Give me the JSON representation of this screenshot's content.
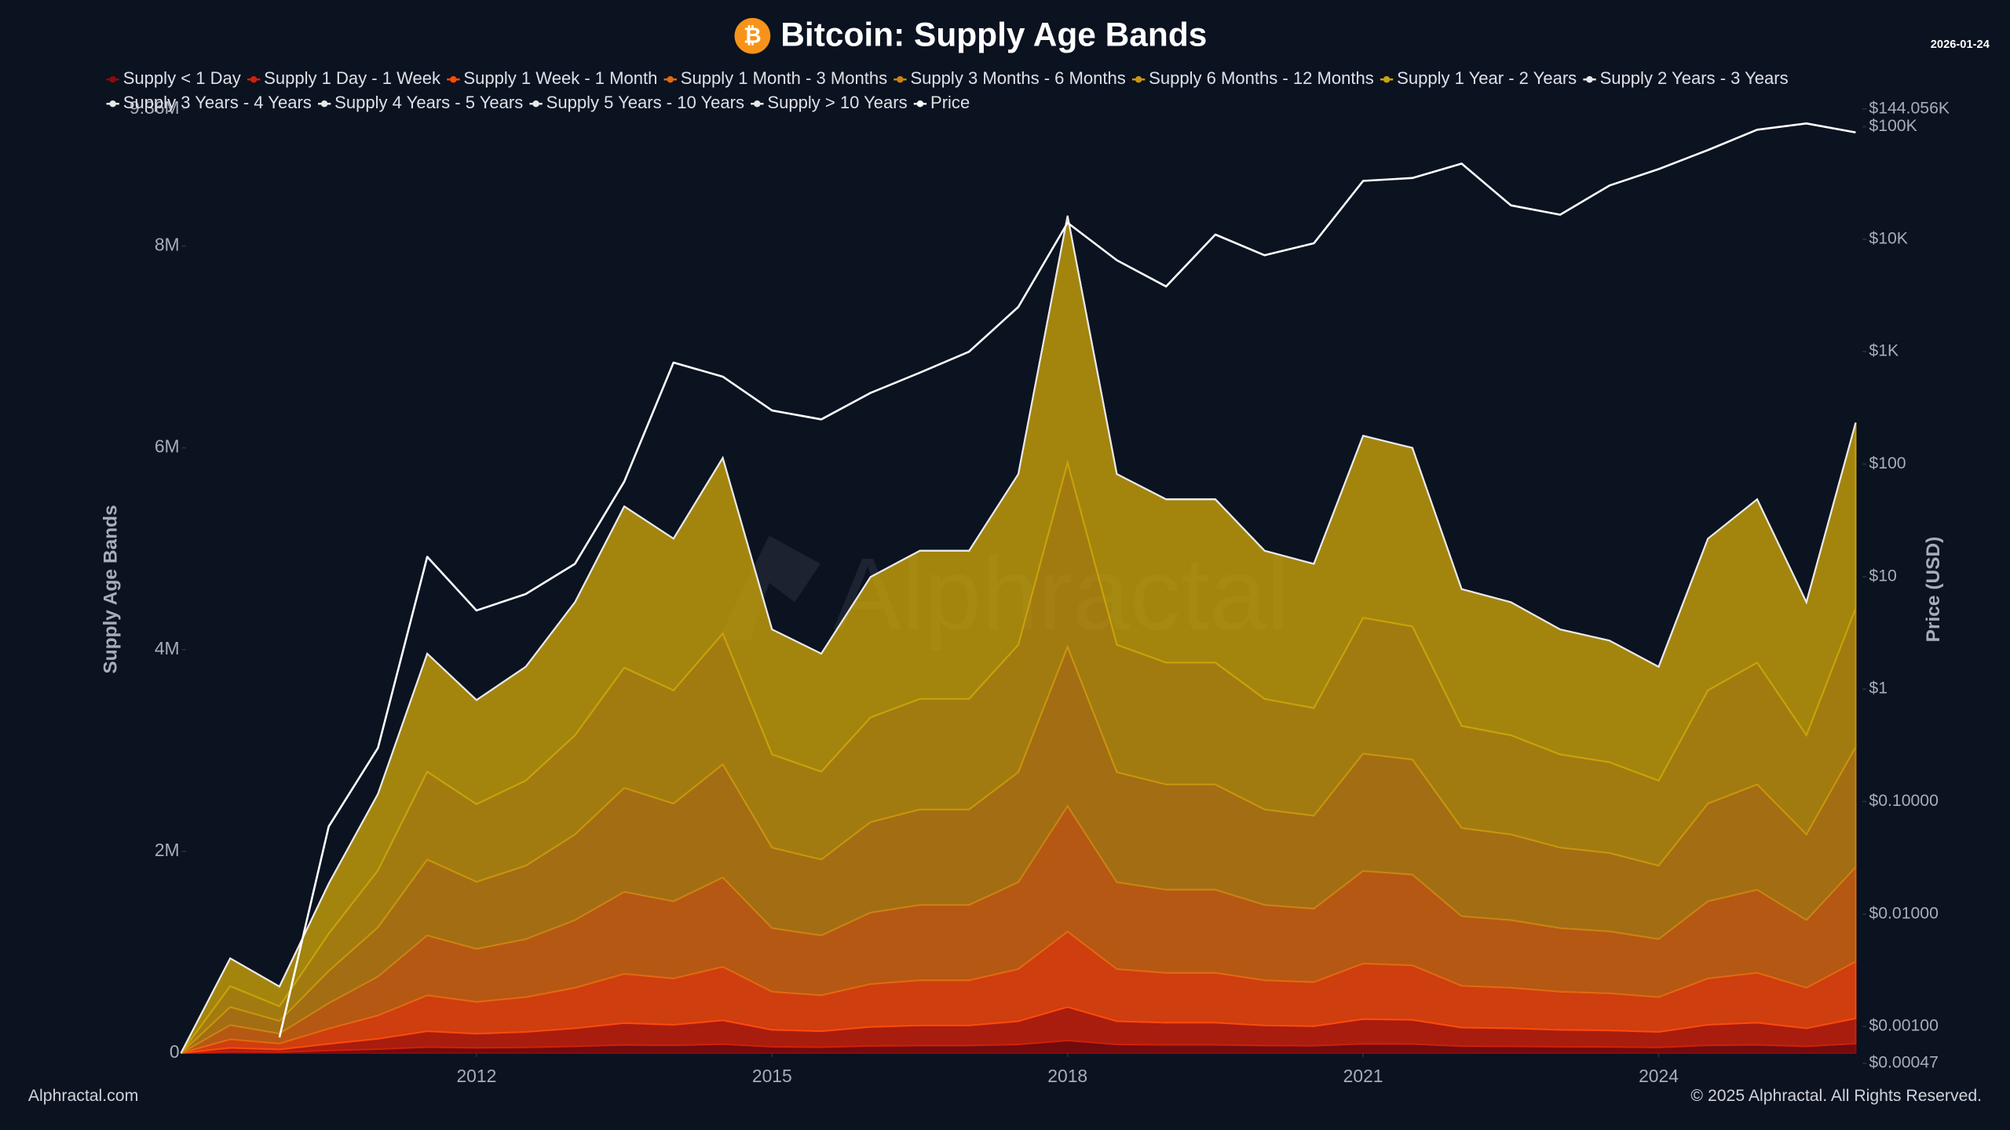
{
  "chart_data": {
    "type": "stacked-area",
    "title": "Bitcoin: Supply Age Bands",
    "logo": "₿",
    "date": "2026-01-24",
    "ylabel": "Supply Age Bands",
    "y2label": "Price (USD)",
    "watermark": "Alphractal",
    "source": "Alphractal.com",
    "copyright": "© 2025 Alphractal. All Rights Reserved.",
    "grid": false,
    "legend": "top",
    "y2scale": "log",
    "x": [
      2009.0,
      2009.5,
      2010.0,
      2010.5,
      2011.0,
      2011.5,
      2012.0,
      2012.5,
      2013.0,
      2013.5,
      2014.0,
      2014.5,
      2015.0,
      2015.5,
      2016.0,
      2016.5,
      2017.0,
      2017.5,
      2018.0,
      2018.5,
      2019.0,
      2019.5,
      2020.0,
      2020.5,
      2021.0,
      2021.5,
      2022.0,
      2022.5,
      2023.0,
      2023.5,
      2024.0,
      2024.5,
      2025.0,
      2025.5,
      2026.0
    ],
    "xlim": [
      2009.05,
      2026.07
    ],
    "xticks": [
      2012,
      2015,
      2018,
      2021,
      2024
    ],
    "ylim": [
      0,
      9360000
    ],
    "yticks": [
      0,
      {
        "value": 2000000,
        "label": "2M"
      },
      {
        "value": 4000000,
        "label": "4M"
      },
      {
        "value": 6000000,
        "label": "6M"
      },
      {
        "value": 8000000,
        "label": "8M"
      },
      {
        "value": 9360000,
        "label": "9.36M"
      }
    ],
    "y2lim": [
      0.00047,
      144056
    ],
    "y2ticks": [
      {
        "value": 0.00047,
        "label": "$0.00047"
      },
      {
        "value": 0.001,
        "label": "$0.00100"
      },
      {
        "value": 0.01,
        "label": "$0.01000"
      },
      {
        "value": 0.1,
        "label": "$0.10000"
      },
      {
        "value": 1,
        "label": "$1"
      },
      {
        "value": 10,
        "label": "$10"
      },
      {
        "value": 100,
        "label": "$100"
      },
      {
        "value": 1000,
        "label": "$1K"
      },
      {
        "value": 10000,
        "label": "$10K"
      },
      {
        "value": 100000,
        "label": "$100K"
      },
      {
        "value": 144056,
        "label": "$144.056K"
      }
    ],
    "series": [
      {
        "name": "Supply < 1 Day",
        "color": "#8b0a0a",
        "values": [
          0,
          14000,
          10000,
          25000,
          39000,
          59000,
          53000,
          57000,
          67000,
          81000,
          77000,
          89000,
          63000,
          59000,
          71000,
          75000,
          75000,
          86000,
          125000,
          86000,
          82000,
          82000,
          75000,
          73000,
          92000,
          90000,
          69000,
          67000,
          63000,
          61000,
          57000,
          77000,
          82000,
          67000,
          94000
        ]
      },
      {
        "name": "Supply 1 Day - 1 Week",
        "color": "#d0200a",
        "values": [
          0,
          38000,
          26000,
          67000,
          103000,
          158000,
          140000,
          153000,
          179000,
          217000,
          204000,
          236000,
          168000,
          158000,
          189000,
          199000,
          199000,
          230000,
          332000,
          230000,
          220000,
          220000,
          199000,
          194000,
          245000,
          240000,
          184000,
          179000,
          168000,
          164000,
          153000,
          204000,
          220000,
          179000,
          250000
        ]
      },
      {
        "name": "Supply 1 Week - 1 Month",
        "color": "#ff4a0a",
        "values": [
          0,
          85000,
          59000,
          151000,
          231000,
          356000,
          315000,
          345000,
          402000,
          488000,
          459000,
          531000,
          378000,
          356000,
          425000,
          448000,
          448000,
          517000,
          747000,
          517000,
          494000,
          494000,
          448000,
          437000,
          551000,
          540000,
          414000,
          402000,
          378000,
          368000,
          345000,
          459000,
          494000,
          402000,
          563000
        ]
      },
      {
        "name": "Supply 1 Month - 3 Months",
        "color": "#e06a10",
        "values": [
          0,
          141000,
          99000,
          252000,
          386000,
          594000,
          525000,
          575000,
          671000,
          813000,
          765000,
          885000,
          630000,
          594000,
          708000,
          747000,
          747000,
          861000,
          1245000,
          861000,
          824000,
          824000,
          747000,
          728000,
          918000,
          900000,
          690000,
          671000,
          630000,
          614000,
          575000,
          765000,
          824000,
          671000,
          938000
        ]
      },
      {
        "name": "Supply 3 Months - 6 Months",
        "color": "#c98412",
        "values": [
          0,
          179000,
          125000,
          319000,
          488000,
          752000,
          665000,
          728000,
          849000,
          1030000,
          969000,
          1121000,
          798000,
          752000,
          897000,
          946000,
          946000,
          1091000,
          1577000,
          1091000,
          1043000,
          1043000,
          946000,
          922000,
          1163000,
          1140000,
          874000,
          849000,
          798000,
          777000,
          728000,
          969000,
          1043000,
          849000,
          1188000
        ]
      },
      {
        "name": "Supply 6 Months - 12 Months",
        "color": "#c8960c",
        "values": [
          0,
          207000,
          145000,
          370000,
          565000,
          871000,
          770000,
          843000,
          983000,
          1192000,
          1122000,
          1298000,
          924000,
          871000,
          1038000,
          1096000,
          1096000,
          1263000,
          1826000,
          1263000,
          1208000,
          1208000,
          1096000,
          1067000,
          1346000,
          1320000,
          1012000,
          983000,
          924000,
          900000,
          843000,
          1122000,
          1208000,
          983000,
          1375000
        ]
      },
      {
        "name": "Supply 1 Year - 2 Years",
        "color": "#c9a30a",
        "values": [
          0,
          276000,
          196000,
          496000,
          758000,
          1170000,
          1032000,
          1129000,
          1319000,
          1599000,
          1504000,
          1740000,
          1239000,
          1170000,
          1392000,
          1469000,
          1469000,
          1692000,
          2448000,
          1692000,
          1619000,
          1619000,
          1469000,
          1429000,
          1805000,
          1770000,
          1357000,
          1319000,
          1239000,
          1206000,
          1129000,
          1504000,
          1619000,
          1319000,
          1842000
        ]
      },
      {
        "name": "Supply 2 Years - 3 Years",
        "color": "#e8e8e8",
        "values": [
          0,
          0,
          0,
          0,
          0,
          0,
          0,
          0,
          0,
          0,
          0,
          0,
          0,
          0,
          0,
          0,
          0,
          0,
          0,
          0,
          0,
          0,
          0,
          0,
          0,
          0,
          0,
          0,
          0,
          0,
          0,
          0,
          0,
          0,
          0
        ]
      },
      {
        "name": "Supply 3 Years - 4 Years",
        "color": "#e8e8e8",
        "values": [
          0,
          0,
          0,
          0,
          0,
          0,
          0,
          0,
          0,
          0,
          0,
          0,
          0,
          0,
          0,
          0,
          0,
          0,
          0,
          0,
          0,
          0,
          0,
          0,
          0,
          0,
          0,
          0,
          0,
          0,
          0,
          0,
          0,
          0,
          0
        ]
      },
      {
        "name": "Supply 4 Years - 5 Years",
        "color": "#e8e8e8",
        "values": [
          0,
          0,
          0,
          0,
          0,
          0,
          0,
          0,
          0,
          0,
          0,
          0,
          0,
          0,
          0,
          0,
          0,
          0,
          0,
          0,
          0,
          0,
          0,
          0,
          0,
          0,
          0,
          0,
          0,
          0,
          0,
          0,
          0,
          0,
          0
        ]
      },
      {
        "name": "Supply 5 Years - 10 Years",
        "color": "#e8e8e8",
        "values": [
          0,
          0,
          0,
          0,
          0,
          0,
          0,
          0,
          0,
          0,
          0,
          0,
          0,
          0,
          0,
          0,
          0,
          0,
          0,
          0,
          0,
          0,
          0,
          0,
          0,
          0,
          0,
          0,
          0,
          0,
          0,
          0,
          0,
          0,
          0
        ]
      },
      {
        "name": "Supply > 10 Years",
        "color": "#e8e8e8",
        "values": [
          0,
          0,
          0,
          0,
          0,
          0,
          0,
          0,
          0,
          0,
          0,
          0,
          0,
          0,
          0,
          0,
          0,
          0,
          0,
          0,
          0,
          0,
          0,
          0,
          0,
          0,
          0,
          0,
          0,
          0,
          0,
          0,
          0,
          0,
          0
        ]
      },
      {
        "name": "Price",
        "color": "#ffffff",
        "axis": "y2",
        "values": [
          null,
          null,
          0.0008,
          0.06,
          0.3,
          15,
          5,
          7,
          13,
          70,
          800,
          600,
          300,
          250,
          430,
          650,
          1000,
          2500,
          14000,
          6500,
          3800,
          11000,
          7200,
          9200,
          33000,
          35000,
          47000,
          20000,
          16500,
          30000,
          42000,
          62000,
          94000,
          107000,
          89000
        ]
      }
    ]
  }
}
